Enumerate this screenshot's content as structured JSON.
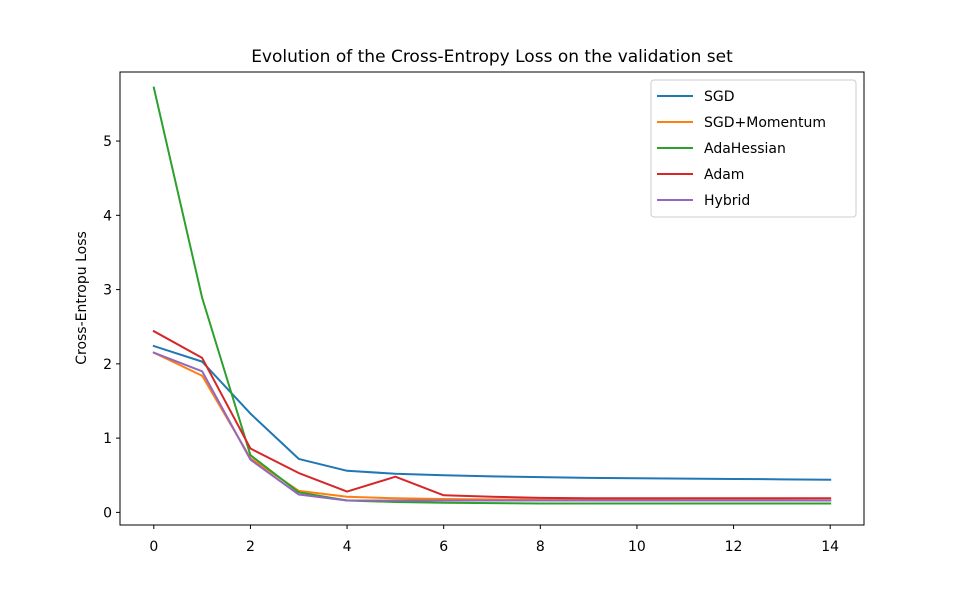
{
  "chart_data": {
    "type": "line",
    "title": "Evolution of the Cross-Entropy Loss on the validation set",
    "xlabel": "",
    "ylabel": "Cross-Entropu Loss",
    "xlim": [
      -0.7,
      14.7
    ],
    "ylim": [
      -0.17,
      5.93
    ],
    "xticks": [
      0,
      2,
      4,
      6,
      8,
      10,
      12,
      14
    ],
    "yticks": [
      0,
      1,
      2,
      3,
      4,
      5
    ],
    "legend_position": "top-right",
    "grid": false,
    "x": [
      0,
      1,
      2,
      3,
      4,
      5,
      6,
      7,
      8,
      9,
      10,
      11,
      12,
      13,
      14
    ],
    "series": [
      {
        "name": "SGD",
        "color": "#1f77b4",
        "values": [
          2.24,
          2.03,
          1.33,
          0.72,
          0.56,
          0.52,
          0.5,
          0.485,
          0.475,
          0.465,
          0.46,
          0.455,
          0.45,
          0.445,
          0.44
        ]
      },
      {
        "name": "SGD+Momentum",
        "color": "#ff7f0e",
        "values": [
          2.15,
          1.84,
          0.73,
          0.29,
          0.21,
          0.19,
          0.18,
          0.175,
          0.17,
          0.17,
          0.17,
          0.165,
          0.165,
          0.165,
          0.16
        ]
      },
      {
        "name": "AdaHessian",
        "color": "#2ca02c",
        "values": [
          5.72,
          2.89,
          0.77,
          0.27,
          0.16,
          0.14,
          0.13,
          0.125,
          0.12,
          0.12,
          0.12,
          0.12,
          0.12,
          0.12,
          0.12
        ]
      },
      {
        "name": "Adam",
        "color": "#d62728",
        "values": [
          2.44,
          2.08,
          0.86,
          0.53,
          0.28,
          0.48,
          0.23,
          0.21,
          0.195,
          0.19,
          0.19,
          0.19,
          0.19,
          0.19,
          0.19
        ]
      },
      {
        "name": "Hybrid",
        "color": "#9467bd",
        "values": [
          2.15,
          1.9,
          0.71,
          0.24,
          0.16,
          0.16,
          0.16,
          0.16,
          0.16,
          0.16,
          0.16,
          0.16,
          0.16,
          0.16,
          0.16
        ]
      }
    ]
  }
}
